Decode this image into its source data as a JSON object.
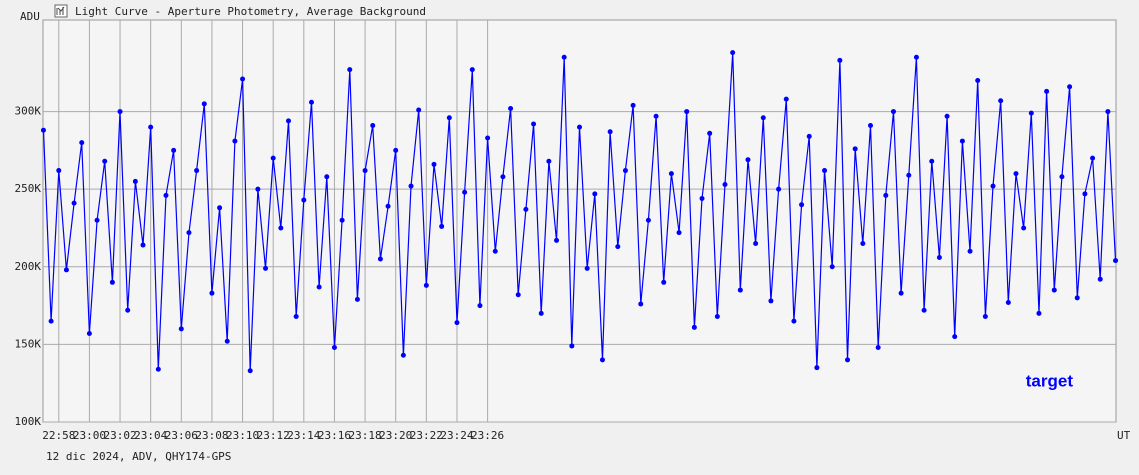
{
  "chart_data": {
    "type": "line",
    "title": "Light Curve - Aperture Photometry, Average Background",
    "y_label": "ADU",
    "x_label": "UT",
    "footer": "12 dic 2024, ADV, QHY174-GPS",
    "xlim": [
      1376.97,
      1447.03
    ],
    "xticks": [
      {
        "value": 1378,
        "label": "22:58"
      },
      {
        "value": 1380,
        "label": "23:00"
      },
      {
        "value": 1382,
        "label": "23:02"
      },
      {
        "value": 1384,
        "label": "23:04"
      },
      {
        "value": 1386,
        "label": "23:06"
      },
      {
        "value": 1388,
        "label": "23:08"
      },
      {
        "value": 1390,
        "label": "23:10"
      },
      {
        "value": 1392,
        "label": "23:12"
      },
      {
        "value": 1394,
        "label": "23:14"
      },
      {
        "value": 1396,
        "label": "23:16"
      },
      {
        "value": 1398,
        "label": "23:18"
      },
      {
        "value": 1400,
        "label": "23:20"
      },
      {
        "value": 1402,
        "label": "23:22"
      },
      {
        "value": 1404,
        "label": "23:24"
      },
      {
        "value": 1406,
        "label": "23:26"
      }
    ],
    "ylim": [
      100000,
      359000
    ],
    "yticks": [
      {
        "value": 100000,
        "label": "100K"
      },
      {
        "value": 150000,
        "label": "150K"
      },
      {
        "value": 200000,
        "label": "200K"
      },
      {
        "value": 250000,
        "label": "250K"
      },
      {
        "value": 300000,
        "label": "300K"
      }
    ],
    "grid": true,
    "legend_position": "lower right",
    "x": [
      1377.0,
      1377.5,
      1378.0,
      1378.5,
      1379.0,
      1379.5,
      1380.0,
      1380.5,
      1381.0,
      1381.5,
      1382.0,
      1382.5,
      1383.0,
      1383.5,
      1384.0,
      1384.5,
      1385.0,
      1385.5,
      1386.0,
      1386.5,
      1387.0,
      1387.5,
      1388.0,
      1388.5,
      1389.0,
      1389.5,
      1390.0,
      1390.5,
      1391.0,
      1391.5,
      1392.0,
      1392.5,
      1393.0,
      1393.5,
      1394.0,
      1394.5,
      1395.0,
      1395.5,
      1396.0,
      1396.5,
      1397.0,
      1397.5,
      1398.0,
      1398.5,
      1399.0,
      1399.5,
      1400.0,
      1400.5,
      1401.0,
      1401.5,
      1402.0,
      1402.5,
      1403.0,
      1403.5,
      1404.0,
      1404.5,
      1405.0,
      1405.5,
      1406.0,
      1406.5,
      1407.0,
      1407.5,
      1408.0,
      1408.5,
      1409.0,
      1409.5,
      1410.0,
      1410.5,
      1411.0,
      1411.5,
      1412.0,
      1412.5,
      1413.0,
      1413.5,
      1414.0,
      1414.5,
      1415.0,
      1415.5,
      1416.0,
      1416.5,
      1417.0,
      1417.5,
      1418.0,
      1418.5,
      1419.0,
      1419.5,
      1420.0,
      1420.5,
      1421.0,
      1421.5,
      1422.0,
      1422.5,
      1423.0,
      1423.5,
      1424.0,
      1424.5,
      1425.0,
      1425.5,
      1426.0,
      1426.5,
      1427.0,
      1427.5,
      1428.0,
      1428.5,
      1429.0,
      1429.5,
      1430.0,
      1430.5,
      1431.0,
      1431.5,
      1432.0,
      1432.5,
      1433.0,
      1433.5,
      1434.0,
      1434.5,
      1435.0,
      1435.5,
      1436.0,
      1436.5,
      1437.0,
      1437.5,
      1438.0,
      1438.5,
      1439.0,
      1439.5,
      1440.0,
      1440.5,
      1441.0,
      1441.5,
      1442.0,
      1442.5,
      1443.0,
      1443.5,
      1444.0,
      1444.5,
      1445.0,
      1445.5,
      1446.0,
      1446.5,
      1447.0
    ],
    "series": [
      {
        "name": "target",
        "color": "#0000ff",
        "values": [
          288000,
          165000,
          262000,
          198000,
          241000,
          280000,
          157000,
          230000,
          268000,
          190000,
          300000,
          172000,
          255000,
          214000,
          290000,
          134000,
          246000,
          275000,
          160000,
          222000,
          262000,
          305000,
          183000,
          238000,
          152000,
          281000,
          321000,
          133000,
          250000,
          199000,
          270000,
          225000,
          294000,
          168000,
          243000,
          306000,
          187000,
          258000,
          148000,
          230000,
          327000,
          179000,
          262000,
          291000,
          205000,
          239000,
          275000,
          143000,
          252000,
          301000,
          188000,
          266000,
          226000,
          296000,
          164000,
          248000,
          327000,
          175000,
          283000,
          210000,
          258000,
          302000,
          182000,
          237000,
          292000,
          170000,
          268000,
          217000,
          335000,
          149000,
          290000,
          199000,
          247000,
          140000,
          287000,
          213000,
          262000,
          304000,
          176000,
          230000,
          297000,
          190000,
          260000,
          222000,
          300000,
          161000,
          244000,
          286000,
          168000,
          253000,
          338000,
          185000,
          269000,
          215000,
          296000,
          178000,
          250000,
          308000,
          165000,
          240000,
          284000,
          135000,
          262000,
          200000,
          333000,
          140000,
          276000,
          215000,
          291000,
          148000,
          246000,
          300000,
          183000,
          259000,
          335000,
          172000,
          268000,
          206000,
          297000,
          155000,
          281000,
          210000,
          320000,
          168000,
          252000,
          307000,
          177000,
          260000,
          225000,
          299000,
          170000,
          313000,
          185000,
          258000,
          316000,
          180000,
          247000,
          270000,
          192000,
          300000,
          204000
        ]
      }
    ]
  }
}
